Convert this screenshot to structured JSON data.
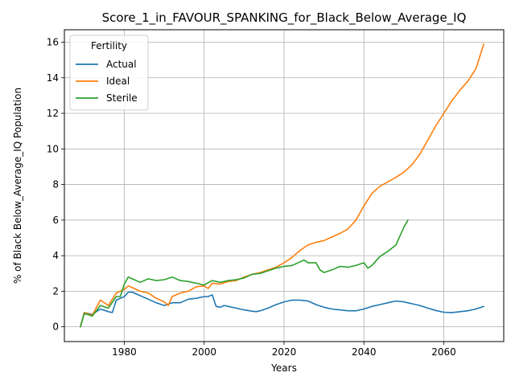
{
  "chart_data": {
    "type": "line",
    "title": "Score_1_in_FAVOUR_SPANKING_for_Black_Below_Average_IQ",
    "xlabel": "Years",
    "ylabel": "% of Black Below_Average_IQ Population",
    "xlim": [
      1965,
      2075
    ],
    "ylim": [
      -0.83,
      16.7
    ],
    "x_ticks": [
      1980,
      2000,
      2020,
      2040,
      2060
    ],
    "y_ticks": [
      0,
      2,
      4,
      6,
      8,
      10,
      12,
      14,
      16
    ],
    "grid": true,
    "legend": {
      "title": "Fertility",
      "placement": "top-left"
    },
    "series": [
      {
        "name": "Actual",
        "color": "#1f77b4",
        "x": [
          1969,
          1970,
          1972,
          1974,
          1976,
          1977,
          1978,
          1980,
          1981,
          1982,
          1984,
          1986,
          1988,
          1990,
          1992,
          1994,
          1996,
          1998,
          2000,
          2001,
          2002,
          2003,
          2004,
          2005,
          2006,
          2008,
          2010,
          2012,
          2013,
          2014,
          2016,
          2018,
          2020,
          2022,
          2024,
          2026,
          2028,
          2030,
          2032,
          2034,
          2036,
          2038,
          2040,
          2042,
          2044,
          2046,
          2048,
          2050,
          2052,
          2054,
          2056,
          2058,
          2060,
          2062,
          2064,
          2066,
          2068,
          2070
        ],
        "values": [
          0.0,
          0.8,
          0.7,
          1.0,
          0.85,
          0.8,
          1.5,
          1.7,
          1.95,
          1.95,
          1.75,
          1.55,
          1.35,
          1.2,
          1.35,
          1.35,
          1.55,
          1.6,
          1.7,
          1.7,
          1.8,
          1.15,
          1.1,
          1.2,
          1.15,
          1.05,
          0.95,
          0.88,
          0.85,
          0.9,
          1.05,
          1.25,
          1.4,
          1.5,
          1.5,
          1.45,
          1.25,
          1.1,
          1.0,
          0.95,
          0.9,
          0.9,
          1.0,
          1.15,
          1.25,
          1.35,
          1.45,
          1.4,
          1.3,
          1.2,
          1.05,
          0.92,
          0.82,
          0.8,
          0.85,
          0.9,
          1.0,
          1.15
        ]
      },
      {
        "name": "Ideal",
        "color": "#ff7f0e",
        "x": [
          1969,
          1970,
          1972,
          1974,
          1976,
          1978,
          1980,
          1981,
          1982,
          1984,
          1986,
          1988,
          1990,
          1991,
          1992,
          1994,
          1996,
          1998,
          2000,
          2001,
          2002,
          2004,
          2006,
          2008,
          2010,
          2012,
          2014,
          2016,
          2018,
          2020,
          2022,
          2024,
          2026,
          2028,
          2030,
          2032,
          2034,
          2036,
          2038,
          2040,
          2042,
          2044,
          2046,
          2048,
          2050,
          2052,
          2054,
          2056,
          2058,
          2060,
          2062,
          2064,
          2066,
          2068,
          2070
        ],
        "values": [
          0.0,
          0.8,
          0.65,
          1.5,
          1.2,
          1.9,
          2.1,
          2.3,
          2.2,
          2.0,
          1.9,
          1.6,
          1.4,
          1.2,
          1.7,
          1.9,
          2.0,
          2.25,
          2.3,
          2.15,
          2.45,
          2.4,
          2.55,
          2.6,
          2.8,
          2.95,
          3.05,
          3.2,
          3.35,
          3.6,
          3.9,
          4.3,
          4.6,
          4.75,
          4.85,
          5.05,
          5.25,
          5.5,
          6.0,
          6.8,
          7.5,
          7.9,
          8.15,
          8.4,
          8.7,
          9.1,
          9.7,
          10.5,
          11.3,
          12.0,
          12.7,
          13.3,
          13.8,
          14.5,
          15.9
        ]
      },
      {
        "name": "Sterile",
        "color": "#2ca02c",
        "x": [
          1969,
          1970,
          1972,
          1974,
          1976,
          1978,
          1979,
          1980,
          1981,
          1982,
          1984,
          1986,
          1988,
          1990,
          1992,
          1994,
          1996,
          1998,
          2000,
          2002,
          2004,
          2006,
          2008,
          2010,
          2012,
          2014,
          2016,
          2018,
          2020,
          2022,
          2024,
          2025,
          2026,
          2028,
          2029,
          2030,
          2032,
          2034,
          2036,
          2038,
          2040,
          2041,
          2042,
          2044,
          2046,
          2048,
          2050,
          2051
        ],
        "values": [
          0.0,
          0.75,
          0.6,
          1.2,
          1.05,
          1.7,
          1.7,
          2.4,
          2.8,
          2.7,
          2.5,
          2.7,
          2.6,
          2.65,
          2.8,
          2.6,
          2.55,
          2.45,
          2.35,
          2.6,
          2.5,
          2.6,
          2.65,
          2.75,
          2.95,
          3.0,
          3.15,
          3.3,
          3.4,
          3.45,
          3.65,
          3.75,
          3.6,
          3.6,
          3.2,
          3.05,
          3.2,
          3.4,
          3.35,
          3.45,
          3.6,
          3.3,
          3.45,
          3.95,
          4.25,
          4.6,
          5.6,
          6.0
        ]
      }
    ]
  }
}
